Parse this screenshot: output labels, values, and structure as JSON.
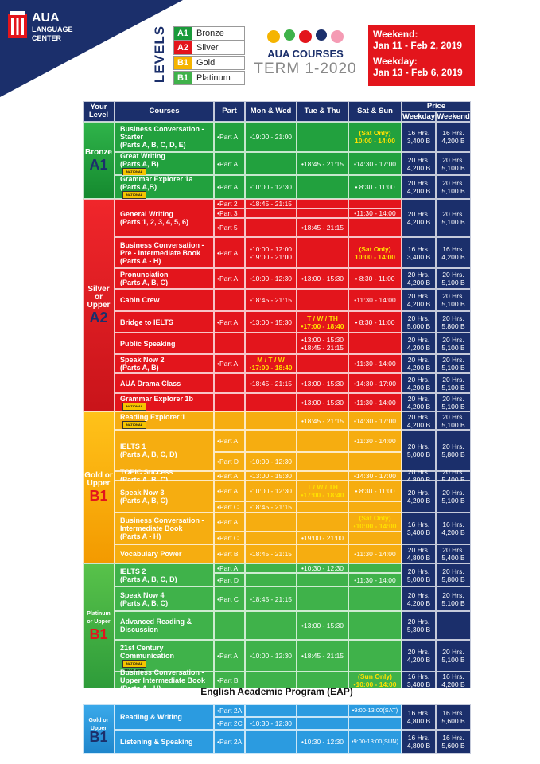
{
  "brand": {
    "name": "AUA",
    "sub1": "LANGUAGE",
    "sub2": "CENTER"
  },
  "levels": {
    "label": "LEVELS",
    "items": [
      {
        "code": "A1",
        "name": "Bronze",
        "color": "#1a9a3a"
      },
      {
        "code": "A2",
        "name": "Silver",
        "color": "#e3151c"
      },
      {
        "code": "B1",
        "name": "Gold",
        "color": "#f5b400"
      },
      {
        "code": "B1",
        "name": "Platinum",
        "color": "#3fb24a"
      }
    ]
  },
  "title": {
    "line1": "AUA COURSES",
    "line2": "TERM 1-2020"
  },
  "schedule": {
    "weekend_label": "Weekend:",
    "weekend_dates": "Jan 11 - Feb 2, 2019",
    "weekday_label": "Weekday:",
    "weekday_dates": "Jan 13 - Feb 6, 2019"
  },
  "headers": {
    "level": "Your Level",
    "courses": "Courses",
    "part": "Part",
    "mon_wed": "Mon & Wed",
    "tue_thu": "Tue & Thu",
    "sat_sun": "Sat & Sun",
    "price": "Price",
    "weekday": "Weekday",
    "weekend": "Weekend"
  },
  "bands": [
    {
      "label": "Bronze",
      "code": "A1"
    },
    {
      "label": "Silver or Upper",
      "code": "A2"
    },
    {
      "label": "Gold or Upper",
      "code": "B1"
    },
    {
      "label": "Platinum or Upper",
      "code": "B1"
    }
  ],
  "courses": [
    {
      "name": "Business Conversation - Starter",
      "sub": "(Parts A, B, C, D, E)"
    },
    {
      "name": "Great Writing",
      "sub": "(Parts A, B)"
    },
    {
      "name": "Grammar Explorer 1a",
      "sub": "(Parts A,B)"
    },
    {
      "name": "General Writing",
      "sub": "(Parts 1, 2, 3, 4, 5, 6)"
    },
    {
      "name": "Business Conversation - Pre - intermediate Book",
      "sub": "(Parts A - H)"
    },
    {
      "name": "Pronunciation",
      "sub": "(Parts A, B, C)"
    },
    {
      "name": "Cabin Crew",
      "sub": ""
    },
    {
      "name": "Bridge to IELTS",
      "sub": ""
    },
    {
      "name": "Public Speaking",
      "sub": ""
    },
    {
      "name": "Speak Now 2",
      "sub": "(Parts A, B)"
    },
    {
      "name": "AUA Drama Class",
      "sub": ""
    },
    {
      "name": "Grammar Explorer 1b",
      "sub": ""
    },
    {
      "name": "Reading Explorer 1",
      "sub": ""
    },
    {
      "name": "IELTS 1",
      "sub": "(Parts A, B, C, D)"
    },
    {
      "name": "TOEIC Success",
      "sub": "(Parts A, B, C)"
    },
    {
      "name": "Speak Now 3",
      "sub": "(Parts A, B, C)"
    },
    {
      "name": "Business Conversation - Intermediate Book",
      "sub": "(Parts A - H)"
    },
    {
      "name": "Vocabulary Power",
      "sub": ""
    },
    {
      "name": "IELTS 2",
      "sub": "(Parts A, B, C, D)"
    },
    {
      "name": "Speak Now 4",
      "sub": "(Parts A, B, C)"
    },
    {
      "name": "Advanced Reading & Discussion",
      "sub": ""
    },
    {
      "name": "21st Century Communication",
      "sub": ""
    },
    {
      "name": "Business Conversation - Upper Intermediate Book",
      "sub": "(Parts A - H)"
    }
  ],
  "rows": [
    {
      "part": "•Part A",
      "mw": "•19:00 - 21:00",
      "tt": "",
      "ss": "(Sat Only)\n10:00 - 14:00",
      "pwd": "16 Hrs.\n3,400 B",
      "pwe": "16 Hrs.\n4,200 B"
    },
    {
      "part": "•Part A",
      "mw": "",
      "tt": "•18:45 - 21:15",
      "ss": "•14:30 - 17:00",
      "pwd": "20 Hrs.\n4,200 B",
      "pwe": "20 Hrs.\n5,100 B"
    },
    {
      "part": "•Part A",
      "mw": "•10:00 - 12:30",
      "tt": "",
      "ss": "• 8:30 - 11:00",
      "pwd": "20 Hrs.\n4,200 B",
      "pwe": "20 Hrs.\n5,100 B"
    },
    {
      "part": "•Part 2",
      "mw": "•18:45 - 21:15",
      "tt": "",
      "ss": "",
      "pwd": "",
      "pwe": ""
    },
    {
      "part": "•Part 3",
      "mw": "",
      "tt": "",
      "ss": "•11:30 - 14:00",
      "pwd": "20 Hrs.\n4,200 B",
      "pwe": "20 Hrs.\n5,100 B"
    },
    {
      "part": "•Part 5",
      "mw": "",
      "tt": "•18:45 - 21:15",
      "ss": "",
      "pwd": "",
      "pwe": ""
    },
    {
      "part": "•Part A",
      "mw": "•10:00 - 12:00\n•19:00 - 21:00",
      "tt": "",
      "ss": "(Sat Only)\n10:00 - 14:00",
      "pwd": "16 Hrs.\n3,400 B",
      "pwe": "16 Hrs.\n4,200 B"
    },
    {
      "part": "•Part A",
      "mw": "•10:00 - 12:30",
      "tt": "•13:00 - 15:30",
      "ss": "• 8:30 - 11:00",
      "pwd": "20 Hrs.\n4,200 B",
      "pwe": "20 Hrs.\n5,100 B"
    },
    {
      "part": "",
      "mw": "•18:45 - 21:15",
      "tt": "",
      "ss": "•11:30 - 14:00",
      "pwd": "20 Hrs.\n4,200 B",
      "pwe": "20 Hrs.\n5,100 B"
    },
    {
      "part": "•Part A",
      "mw": "•13:00 - 15:30",
      "tt": "T / W / TH\n•17:00 - 18:40",
      "ss": "• 8:30 - 11:00",
      "pwd": "20 Hrs.\n5,000 B",
      "pwe": "20 Hrs.\n5,800 B"
    },
    {
      "part": "",
      "mw": "",
      "tt": "•13:00 - 15:30\n•18:45 - 21:15",
      "ss": "",
      "pwd": "20 Hrs.\n4,200 B",
      "pwe": "20 Hrs.\n5,100 B"
    },
    {
      "part": "•Part A",
      "mw": "M / T / W\n•17:00 - 18:40",
      "tt": "",
      "ss": "•11:30 - 14:00",
      "pwd": "20 Hrs.\n4,200 B",
      "pwe": "20 Hrs.\n5,100 B"
    },
    {
      "part": "",
      "mw": "•18:45 - 21:15",
      "tt": "•13:00 - 15:30",
      "ss": "•14:30 - 17:00",
      "pwd": "20 Hrs.\n4,200 B",
      "pwe": "20 Hrs.\n5,100 B"
    },
    {
      "part": "",
      "mw": "",
      "tt": "•13:00 - 15:30",
      "ss": "•11:30 - 14:00",
      "pwd": "20 Hrs.\n4,200 B",
      "pwe": "20 Hrs.\n5,100 B"
    },
    {
      "part": "",
      "mw": "",
      "tt": "•18:45 - 21:15",
      "ss": "•14:30 - 17:00",
      "pwd": "20 Hrs.\n4,200 B",
      "pwe": "20 Hrs.\n5,100 B"
    },
    {
      "part": "•Part A",
      "mw": "",
      "tt": "",
      "ss": "•11:30 - 14:00",
      "pwd": "20 Hrs.\n5,000 B",
      "pwe": "20 Hrs.\n5,800 B"
    },
    {
      "part": "•Part D",
      "mw": "•10:00 - 12:30",
      "tt": "",
      "ss": "",
      "pwd": "",
      "pwe": ""
    },
    {
      "part": "•Part A",
      "mw": "•13:00 - 15:30",
      "tt": "",
      "ss": "•14:30 - 17:00",
      "pwd": "20 Hrs.\n4,800 B",
      "pwe": "20 Hrs.\n5,400 B"
    },
    {
      "part": "•Part A",
      "mw": "•10:00 - 12:30",
      "tt": "T / W / TH\n•17:00 - 18:40",
      "ss": "• 8:30 - 11:00",
      "pwd": "20 Hrs.\n4,200 B",
      "pwe": "20 Hrs.\n5,100 B"
    },
    {
      "part": "•Part C",
      "mw": "•18:45 - 21:15",
      "tt": "",
      "ss": "",
      "pwd": "",
      "pwe": ""
    },
    {
      "part": "•Part A",
      "mw": "",
      "tt": "",
      "ss": "(Sat Only)\n•10:00 - 14:00",
      "pwd": "16 Hrs.\n3,400 B",
      "pwe": "16 Hrs.\n4,200 B"
    },
    {
      "part": "•Part C",
      "mw": "",
      "tt": "•19:00 - 21:00",
      "ss": "",
      "pwd": "",
      "pwe": ""
    },
    {
      "part": "•Part B",
      "mw": "•18:45 - 21:15",
      "tt": "",
      "ss": "•11:30 - 14:00",
      "pwd": "20 Hrs.\n4,800 B",
      "pwe": "20 Hrs.\n5,400 B"
    },
    {
      "part": "•Part A",
      "mw": "",
      "tt": "•10:30 - 12:30",
      "ss": "",
      "pwd": "20 Hrs.\n5,000 B",
      "pwe": "20 Hrs.\n5,800 B"
    },
    {
      "part": "•Part D",
      "mw": "",
      "tt": "",
      "ss": "•11:30 - 14:00",
      "pwd": "",
      "pwe": ""
    },
    {
      "part": "•Part C",
      "mw": "•18:45 - 21:15",
      "tt": "",
      "ss": "",
      "pwd": "20 Hrs.\n4,200 B",
      "pwe": "20 Hrs.\n5,100 B"
    },
    {
      "part": "",
      "mw": "",
      "tt": "•13:00 - 15:30",
      "ss": "",
      "pwd": "20 Hrs.\n5,300 B",
      "pwe": ""
    },
    {
      "part": "•Part A",
      "mw": "•10:00 - 12:30",
      "tt": "•18:45 - 21:15",
      "ss": "",
      "pwd": "20 Hrs.\n4,200 B",
      "pwe": "20 Hrs.\n5,100 B"
    },
    {
      "part": "•Part B",
      "mw": "",
      "tt": "",
      "ss": "(Sun Only)\n•10:00 - 14:00",
      "pwd": "16 Hrs.\n3,400 B",
      "pwe": "16 Hrs.\n4,200 B"
    }
  ],
  "eap": {
    "title": "English Academic Program (EAP)",
    "band_label": "Gold or Upper",
    "band_code": "B1",
    "courses": [
      "Reading & Writing",
      "Listening & Speaking"
    ],
    "rows": [
      {
        "part": "•Part 2A",
        "mw": "",
        "tt": "",
        "ss": "•9:00-13:00(SAT)",
        "pwd": "16 Hrs.\n4,800 B",
        "pwe": "16 Hrs.\n5,600 B"
      },
      {
        "part": "•Part 2C",
        "mw": "•10:30 - 12:30",
        "tt": "",
        "ss": "",
        "pwd": "",
        "pwe": ""
      },
      {
        "part": "•Part 2A",
        "mw": "",
        "tt": "•10:30 - 12:30",
        "ss": "•9:00-13:00(SUN)",
        "pwd": "16 Hrs.\n4,800 B",
        "pwe": "16 Hrs.\n5,600 B"
      }
    ]
  },
  "badges": {
    "ng": "NATIONAL GEOGRAPHIC"
  }
}
